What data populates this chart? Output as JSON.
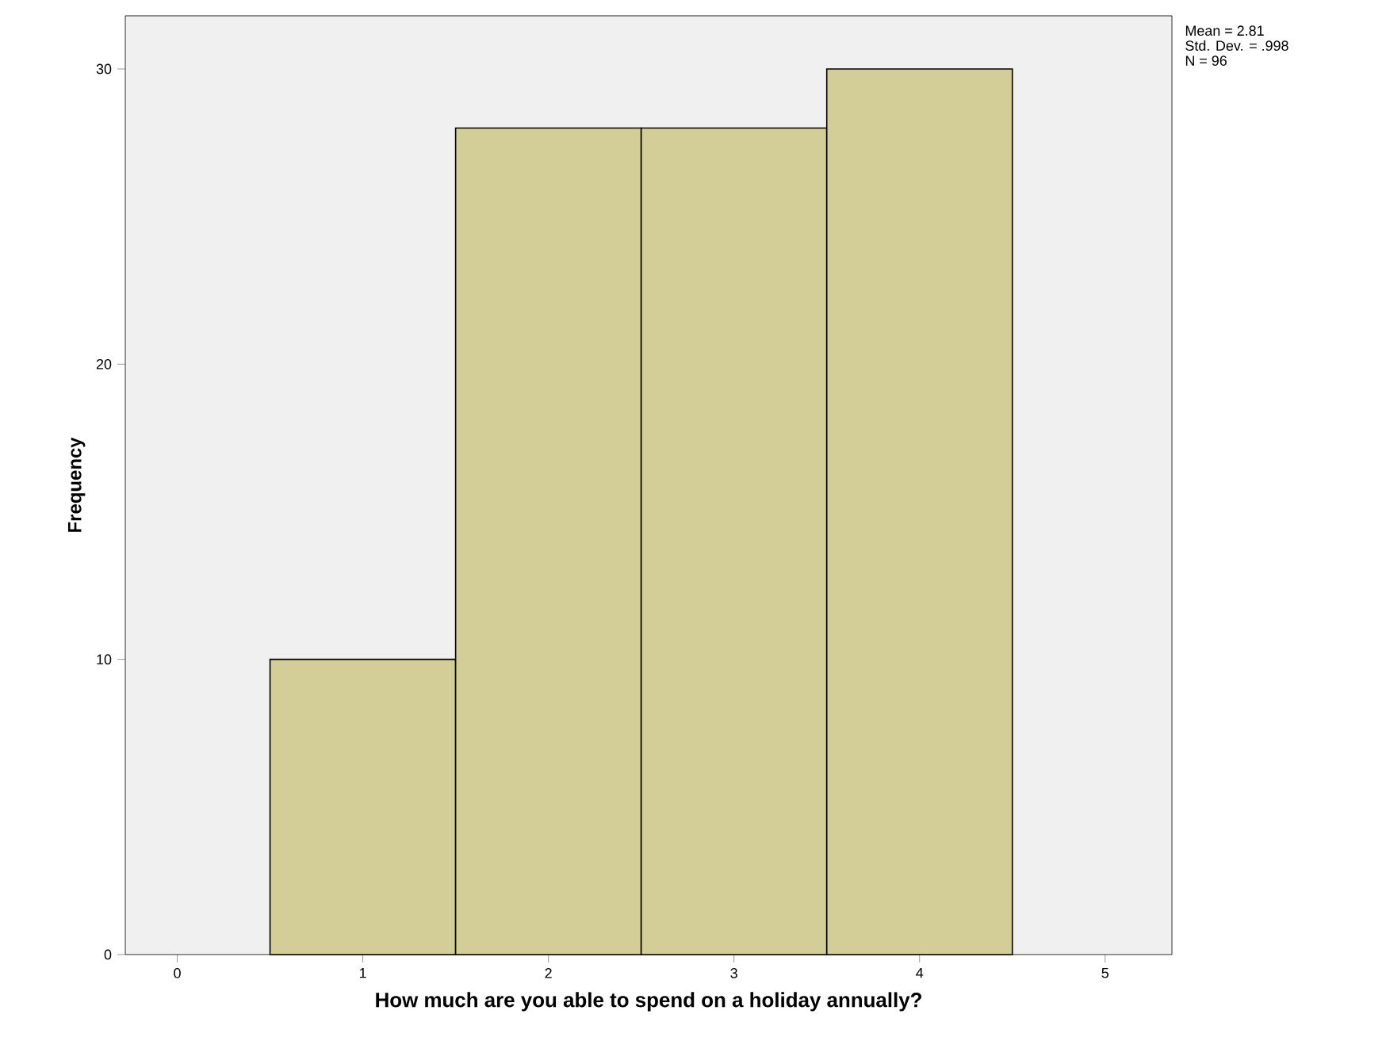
{
  "chart_data": {
    "type": "histogram",
    "xlabel": "How much are you able to spend on a holiday annually?",
    "ylabel": "Frequency",
    "bins": [
      0.5,
      1.5,
      2.5,
      3.5,
      4.5
    ],
    "values": [
      10,
      28,
      28,
      30
    ],
    "color": "#d3ce97",
    "xlim": [
      -0.28,
      5.36
    ],
    "ylim": [
      0,
      31.8
    ],
    "xticks": [
      0,
      1,
      2,
      3,
      4,
      5
    ],
    "yticks": [
      0,
      10,
      20,
      30
    ],
    "grid": false,
    "annotations": [
      "Mean = 2.81",
      "Std. Dev. = .998",
      "N = 96"
    ]
  }
}
